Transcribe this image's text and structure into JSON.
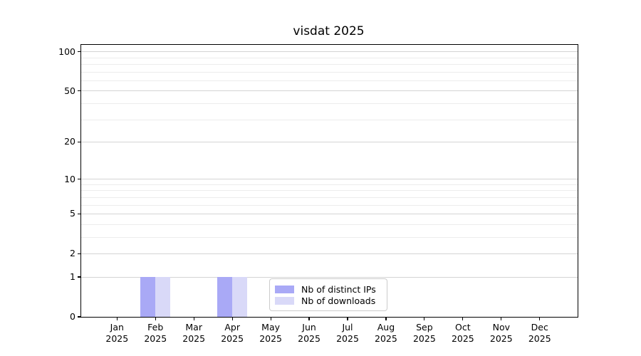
{
  "chart_data": {
    "type": "bar",
    "title": "visdat 2025",
    "categories": [
      "Jan 2025",
      "Feb 2025",
      "Mar 2025",
      "Apr 2025",
      "May 2025",
      "Jun 2025",
      "Jul 2025",
      "Aug 2025",
      "Sep 2025",
      "Oct 2025",
      "Nov 2025",
      "Dec 2025"
    ],
    "series": [
      {
        "name": "Nb of distinct IPs",
        "color": "#a9a9f6",
        "values": [
          0,
          1,
          0,
          1,
          0,
          0,
          0,
          0,
          0,
          0,
          0,
          0
        ]
      },
      {
        "name": "Nb of downloads",
        "color": "#d9d9f8",
        "values": [
          0,
          1,
          0,
          1,
          0,
          0,
          0,
          0,
          0,
          0,
          0,
          0
        ]
      }
    ],
    "xlabel": "",
    "ylabel": "",
    "yscale": "log1p",
    "ylim": [
      0,
      113
    ],
    "yticks": [
      0,
      1,
      2,
      5,
      10,
      20,
      50,
      100
    ],
    "yticks_minor": [
      3,
      4,
      6,
      7,
      8,
      9,
      30,
      40,
      60,
      70,
      80,
      90
    ],
    "grid": true,
    "legend_position": "lower center"
  },
  "colors": {
    "grid_major": "#d4d4d4",
    "grid_minor": "#ececec",
    "spine": "#000000",
    "text": "#000000",
    "background": "#ffffff"
  }
}
